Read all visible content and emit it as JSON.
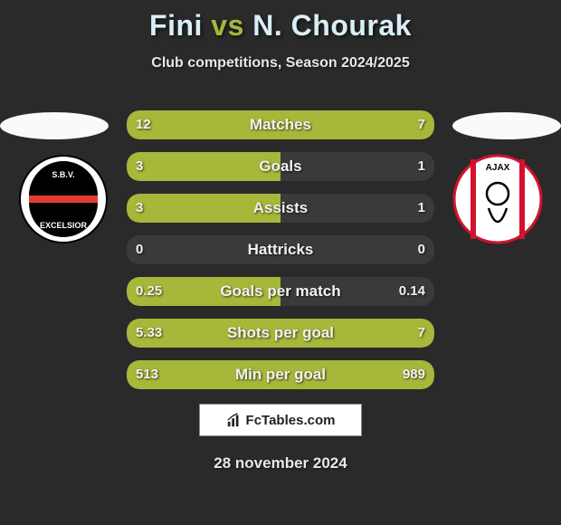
{
  "header": {
    "player1": "Fini",
    "vs": "vs",
    "player2": "N. Chourak",
    "subtitle": "Club competitions, Season 2024/2025"
  },
  "colors": {
    "accent": "#a6b73a",
    "bg": "#2a2a2a",
    "text": "#f2f2f2",
    "bar_bg": "#3a3a3a"
  },
  "rows": [
    {
      "label": "Matches",
      "left": "12",
      "right": "7",
      "left_pct": 50,
      "right_pct": 50
    },
    {
      "label": "Goals",
      "left": "3",
      "right": "1",
      "left_pct": 50,
      "right_pct": 0
    },
    {
      "label": "Assists",
      "left": "3",
      "right": "1",
      "left_pct": 50,
      "right_pct": 0
    },
    {
      "label": "Hattricks",
      "left": "0",
      "right": "0",
      "left_pct": 0,
      "right_pct": 0
    },
    {
      "label": "Goals per match",
      "left": "0.25",
      "right": "0.14",
      "left_pct": 50,
      "right_pct": 0
    },
    {
      "label": "Shots per goal",
      "left": "5.33",
      "right": "7",
      "left_pct": 50,
      "right_pct": 50
    },
    {
      "label": "Min per goal",
      "left": "513",
      "right": "989",
      "left_pct": 50,
      "right_pct": 50
    }
  ],
  "crests": {
    "left": {
      "name": "S.B.V. Excelsior",
      "primary": "#e43d30",
      "secondary": "#000000",
      "bg": "#ffffff"
    },
    "right": {
      "name": "Ajax",
      "primary": "#d2122e",
      "secondary": "#ffffff",
      "bg": "#ffffff"
    }
  },
  "footer": {
    "site": "FcTables.com",
    "date": "28 november 2024"
  }
}
